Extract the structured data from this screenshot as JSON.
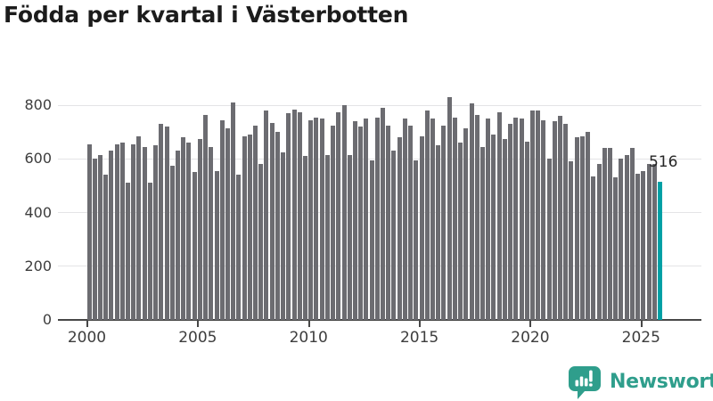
{
  "title": "Födda per kvartal i Västerbotten",
  "footer": {
    "brand": "Newsworthy"
  },
  "colors": {
    "bar": "#6c6c71",
    "highlight": "#00a0a5",
    "brand_green": "#2f9e8c",
    "grid": "#e4e4e6",
    "axis": "#474747",
    "title_text": "#1c1c1c",
    "tick_text": "#3d3d3d"
  },
  "chart_data": {
    "type": "bar",
    "title": "Födda per kvartal i Västerbotten",
    "xlabel": "",
    "ylabel": "",
    "period": "quarterly",
    "x_first_period": "2000 Q1",
    "x_last_period": "2025 Q4",
    "x_ticks": [
      2000,
      2005,
      2010,
      2015,
      2020,
      2025
    ],
    "y_ticks": [
      0,
      200,
      400,
      600,
      800
    ],
    "ylim": [
      0,
      840
    ],
    "grid": "horizontal",
    "legend": "none",
    "bar_color": "#6c6c71",
    "values": [
      655,
      600,
      615,
      540,
      630,
      655,
      660,
      510,
      655,
      685,
      645,
      510,
      650,
      730,
      720,
      575,
      630,
      680,
      660,
      550,
      675,
      765,
      645,
      555,
      745,
      715,
      810,
      540,
      685,
      690,
      725,
      580,
      780,
      735,
      700,
      625,
      770,
      785,
      775,
      610,
      745,
      755,
      750,
      615,
      725,
      775,
      800,
      615,
      740,
      720,
      750,
      595,
      755,
      790,
      725,
      630,
      680,
      750,
      725,
      595,
      685,
      780,
      750,
      650,
      725,
      830,
      755,
      660,
      715,
      805,
      765,
      645,
      750,
      690,
      775,
      675,
      730,
      755,
      750,
      665,
      780,
      780,
      745,
      600,
      740,
      760,
      730,
      590,
      680,
      685,
      700,
      535,
      580,
      640,
      640,
      530,
      600,
      615,
      640,
      545,
      555,
      580,
      580,
      516
    ],
    "highlight": {
      "index": 103,
      "value": 516,
      "label": "516",
      "color": "#00a0a5"
    }
  }
}
